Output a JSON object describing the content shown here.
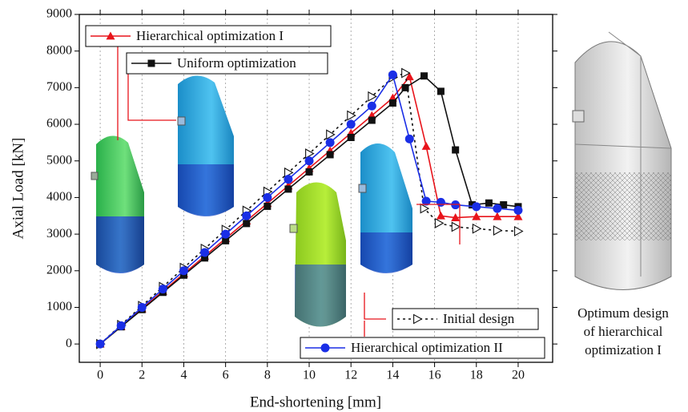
{
  "chart_data": {
    "type": "line",
    "xlabel": "End-shortening [mm]",
    "ylabel": "Axial Load [kN]",
    "xlim": [
      -1,
      21.65
    ],
    "ylim": [
      -500,
      9000
    ],
    "xticks": [
      0,
      2,
      4,
      6,
      8,
      10,
      12,
      14,
      16,
      18,
      20
    ],
    "yticks": [
      0,
      1000,
      2000,
      3000,
      4000,
      5000,
      6000,
      7000,
      8000,
      9000
    ],
    "grid": "x-dotted",
    "series": [
      {
        "name": "Hierarchical optimization I",
        "color": "#e8141b",
        "marker": "triangle-up",
        "dash": false,
        "x": [
          0,
          1,
          2,
          3,
          4,
          5,
          6,
          7,
          8,
          9,
          10,
          11,
          12,
          13,
          14,
          14.8,
          15.6,
          16.3,
          17,
          18,
          19,
          20
        ],
        "values": [
          0,
          480,
          960,
          1440,
          1920,
          2400,
          2880,
          3360,
          3840,
          4320,
          4800,
          5280,
          5760,
          6240,
          6720,
          7300,
          5400,
          3500,
          3450,
          3480,
          3480,
          3480
        ]
      },
      {
        "name": "Uniform optimization",
        "color": "#111111",
        "marker": "square",
        "dash": false,
        "x": [
          0,
          1,
          2,
          3,
          4,
          5,
          6,
          7,
          8,
          9,
          10,
          11,
          12,
          13,
          14,
          14.6,
          15.5,
          16.3,
          17,
          17.8,
          18.6,
          19.3,
          20
        ],
        "values": [
          0,
          470,
          940,
          1410,
          1880,
          2350,
          2820,
          3290,
          3760,
          4230,
          4700,
          5170,
          5640,
          6110,
          6580,
          7000,
          7320,
          6900,
          5300,
          3800,
          3850,
          3800,
          3750
        ]
      },
      {
        "name": "Initial design",
        "color": "#111111",
        "marker": "triangle-right-open",
        "dash": true,
        "x": [
          0,
          1,
          2,
          3,
          4,
          5,
          6,
          7,
          8,
          9,
          10,
          11,
          12,
          13,
          14,
          14.6,
          15.5,
          16.2,
          17,
          18,
          19,
          20
        ],
        "values": [
          0,
          520,
          1040,
          1560,
          2080,
          2600,
          3120,
          3640,
          4160,
          4680,
          5200,
          5720,
          6240,
          6760,
          7280,
          7400,
          3700,
          3300,
          3200,
          3150,
          3100,
          3080
        ]
      },
      {
        "name": "Hierarchical optimization II",
        "color": "#1a2ee6",
        "marker": "circle",
        "dash": false,
        "x": [
          0,
          1,
          2,
          3,
          4,
          5,
          6,
          7,
          8,
          9,
          10,
          11,
          12,
          13,
          14,
          14.8,
          15.6,
          16.3,
          17,
          18,
          19,
          20
        ],
        "values": [
          0,
          500,
          1000,
          1500,
          2000,
          2500,
          3000,
          3500,
          4000,
          4500,
          5000,
          5500,
          6000,
          6500,
          7350,
          5600,
          3900,
          3870,
          3800,
          3750,
          3700,
          3650
        ]
      }
    ]
  },
  "caption": [
    "Optimum design",
    "of hierarchical",
    "optimization I"
  ]
}
